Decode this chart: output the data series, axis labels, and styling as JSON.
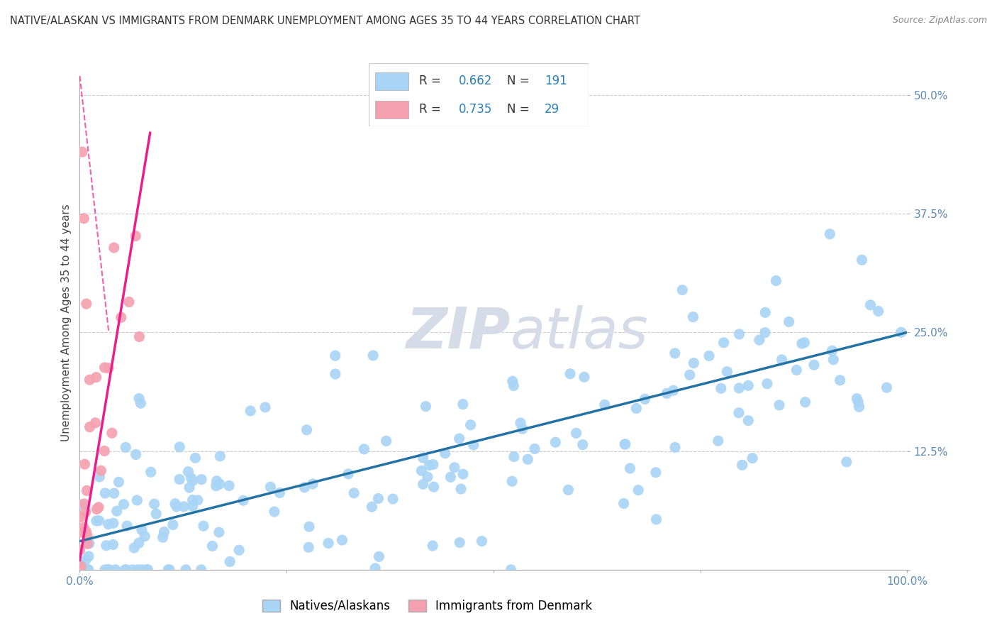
{
  "title": "NATIVE/ALASKAN VS IMMIGRANTS FROM DENMARK UNEMPLOYMENT AMONG AGES 35 TO 44 YEARS CORRELATION CHART",
  "source": "Source: ZipAtlas.com",
  "ylabel": "Unemployment Among Ages 35 to 44 years",
  "xlim": [
    0,
    100
  ],
  "ylim": [
    0,
    52
  ],
  "blue_R": 0.662,
  "blue_N": 191,
  "pink_R": 0.735,
  "pink_N": 29,
  "blue_color": "#A8D4F5",
  "pink_color": "#F4A0B0",
  "blue_line_color": "#2471A3",
  "pink_line_color": "#E91E8C",
  "background_color": "#FFFFFF",
  "grid_color": "#CCCCCC",
  "watermark_color": "#D5DCE8",
  "legend_label_blue": "Natives/Alaskans",
  "legend_label_pink": "Immigrants from Denmark"
}
